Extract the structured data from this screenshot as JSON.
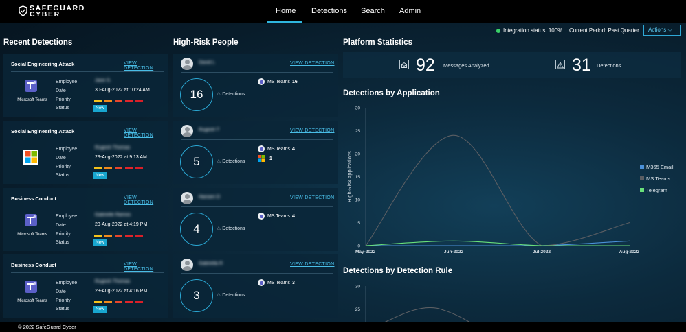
{
  "brand": {
    "line1": "SAFEGUARD",
    "line2": "CYBER"
  },
  "nav": [
    "Home",
    "Detections",
    "Search",
    "Admin"
  ],
  "header": {
    "integration": "Integration status: 100%",
    "period": "Current Period: Past Quarter",
    "actions": "Actions ⌵"
  },
  "sections": {
    "recent": "Recent Detections",
    "people": "High-Risk People",
    "platform": "Platform Statistics",
    "by_app": "Detections by Application",
    "by_rule": "Detections by Detection Rule"
  },
  "labels": {
    "employee": "Employee",
    "date": "Date",
    "priority": "Priority",
    "status": "Status",
    "view": "VIEW DETECTION",
    "detections": "Detections"
  },
  "detections": [
    {
      "title": "Social Engineering Attack",
      "app": "Microsoft Teams",
      "employee": "Jane S.",
      "date": "30-Aug-2022 at 10:24 AM",
      "status": "New"
    },
    {
      "title": "Social Engineering Attack",
      "app": "",
      "employee": "Rugesh Thomas",
      "date": "29-Aug-2022 at 9:13 AM",
      "status": "New"
    },
    {
      "title": "Business Conduct",
      "app": "Microsoft Teams",
      "employee": "Gabrielle Ramos",
      "date": "23-Aug-2022 at 4:19 PM",
      "status": "New"
    },
    {
      "title": "Business Conduct",
      "app": "Microsoft Teams",
      "employee": "Rugesh Thomas",
      "date": "23-Aug-2022 at 4:16 PM",
      "status": "New"
    }
  ],
  "people": [
    {
      "name": "David L",
      "count": "16",
      "apps": [
        {
          "label": "MS Teams",
          "value": "16"
        }
      ]
    },
    {
      "name": "Rugesh T",
      "count": "5",
      "apps": [
        {
          "label": "MS Teams",
          "value": "4"
        },
        {
          "label": "",
          "value": "1"
        }
      ]
    },
    {
      "name": "Hansen D",
      "count": "4",
      "apps": [
        {
          "label": "MS Teams",
          "value": "4"
        }
      ]
    },
    {
      "name": "Gabriella R",
      "count": "3",
      "apps": [
        {
          "label": "MS Teams",
          "value": "3"
        }
      ]
    }
  ],
  "stats": {
    "messages": "92",
    "messages_label": "Messages Analyzed",
    "detections": "31",
    "detections_label": "Detections"
  },
  "chart_data": [
    {
      "type": "line",
      "categories": [
        "May-2022",
        "Jun-2022",
        "Jul-2022",
        "Aug-2022"
      ],
      "ylabel": "High-Risk Applications",
      "ylim": [
        0,
        30
      ],
      "yticks": [
        0,
        5,
        10,
        15,
        20,
        25,
        30
      ],
      "legend": "right",
      "series": [
        {
          "name": "M365 Email",
          "color": "#4a90d9",
          "values": [
            0,
            0,
            0,
            1
          ]
        },
        {
          "name": "MS Teams",
          "color": "#5b5e63",
          "values": [
            0,
            24,
            0,
            5
          ]
        },
        {
          "name": "Telegram",
          "color": "#69e07a",
          "values": [
            0,
            1,
            0,
            0
          ]
        }
      ]
    },
    {
      "type": "line",
      "ylim": [
        0,
        30
      ],
      "yticks": [
        25,
        30
      ],
      "series": [
        {
          "color": "#5b5e63",
          "values": []
        }
      ]
    }
  ],
  "footer": "© 2022 SafeGuard Cyber"
}
